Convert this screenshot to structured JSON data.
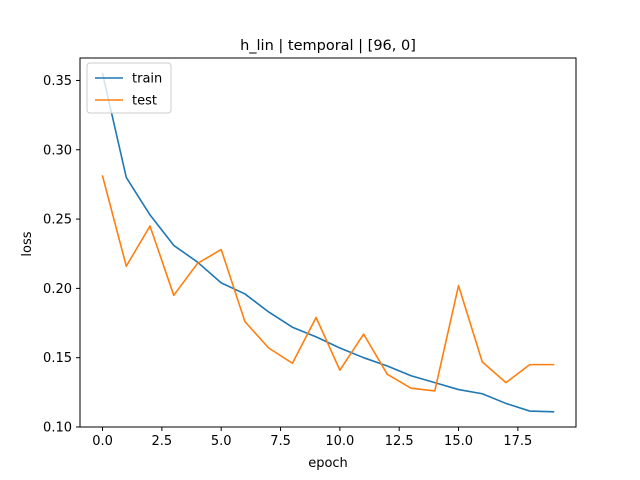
{
  "chart_data": {
    "type": "line",
    "title": "h_lin | temporal | [96, 0]",
    "xlabel": "epoch",
    "ylabel": "loss",
    "xlim": [
      -0.95,
      19.95
    ],
    "ylim": [
      0.1,
      0.3662
    ],
    "xticks": [
      0.0,
      2.5,
      5.0,
      7.5,
      10.0,
      12.5,
      15.0,
      17.5
    ],
    "xtick_labels": [
      "0.0",
      "2.5",
      "5.0",
      "7.5",
      "10.0",
      "12.5",
      "15.0",
      "17.5"
    ],
    "yticks": [
      0.1,
      0.15,
      0.2,
      0.25,
      0.3,
      0.35
    ],
    "ytick_labels": [
      "0.10",
      "0.15",
      "0.20",
      "0.25",
      "0.30",
      "0.35"
    ],
    "grid": false,
    "legend": "upper left",
    "x": [
      0,
      1,
      2,
      3,
      4,
      5,
      6,
      7,
      8,
      9,
      10,
      11,
      12,
      13,
      14,
      15,
      16,
      17,
      18,
      19
    ],
    "series": [
      {
        "name": "train",
        "color": "#1f77b4",
        "values": [
          0.355,
          0.28,
          0.253,
          0.231,
          0.219,
          0.204,
          0.196,
          0.183,
          0.172,
          0.165,
          0.157,
          0.15,
          0.144,
          0.137,
          0.132,
          0.127,
          0.124,
          0.117,
          0.1115,
          0.111
        ]
      },
      {
        "name": "test",
        "color": "#ff7f0e",
        "values": [
          0.281,
          0.216,
          0.245,
          0.195,
          0.218,
          0.228,
          0.176,
          0.157,
          0.146,
          0.179,
          0.141,
          0.167,
          0.138,
          0.128,
          0.126,
          0.202,
          0.147,
          0.132,
          0.145,
          0.145
        ]
      }
    ]
  }
}
